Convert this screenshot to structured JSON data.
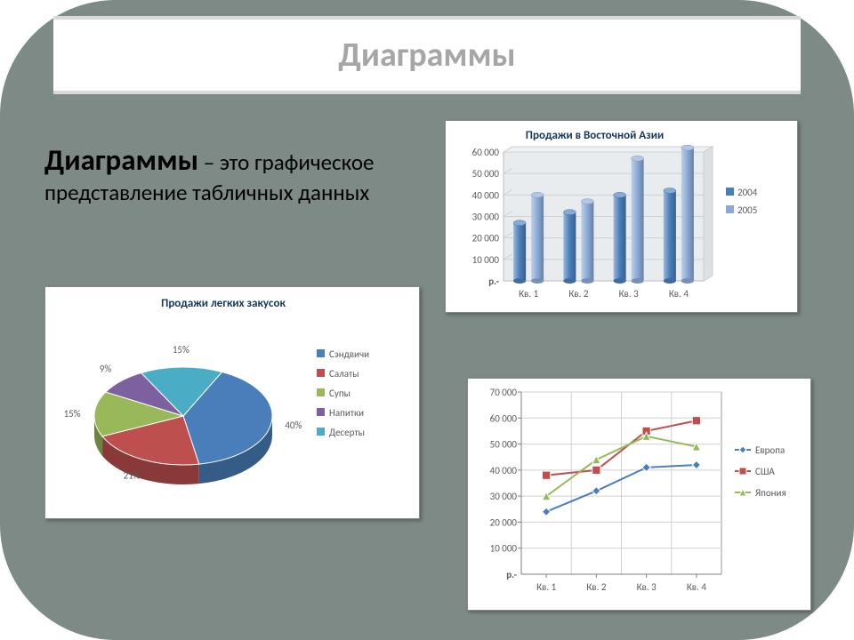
{
  "title": "Диаграммы",
  "definition_bold": "Диаграммы",
  "definition_rest": " – это графическое представление табличных данных",
  "bar_chart": {
    "type": "bar",
    "title": "Продажи в Восточной Азии",
    "categories": [
      "Кв. 1",
      "Кв. 2",
      "Кв. 3",
      "Кв. 4"
    ],
    "series": [
      {
        "name": "2004",
        "color": "#4a7ebb",
        "values": [
          27000,
          32000,
          40000,
          42000
        ]
      },
      {
        "name": "2005",
        "color": "#8aa9d6",
        "values": [
          40000,
          37000,
          57000,
          62000
        ]
      }
    ],
    "ylim": [
      0,
      60000
    ],
    "ytick_step": 10000,
    "ytick_labels": [
      "10 000",
      "20 000",
      "30 000",
      "40 000",
      "50 000",
      "60 000"
    ],
    "y_bottom_label": "р.-",
    "bg": "#ffffff",
    "plot_bg": "#e8ecef",
    "grid": "#c8c8c8",
    "title_fontsize": 13,
    "tick_fontsize": 11,
    "legend_fontsize": 11
  },
  "pie_chart": {
    "type": "pie",
    "title": "Продажи легких закусок",
    "slices": [
      {
        "name": "Сэндвичи",
        "value": 40,
        "label": "40%",
        "color": "#4a7ebb"
      },
      {
        "name": "Салаты",
        "value": 21,
        "label": "21%",
        "color": "#bd4f4e"
      },
      {
        "name": "Супы",
        "value": 15,
        "label": "15%",
        "color": "#98b85a"
      },
      {
        "name": "Напитки",
        "value": 9,
        "label": "9%",
        "color": "#7d60a0"
      },
      {
        "name": "Десерты",
        "value": 15,
        "label": "15%",
        "color": "#4aacc5"
      }
    ],
    "legend_markers": [
      "#4a7ebb",
      "#bd4f4e",
      "#98b85a",
      "#7d60a0",
      "#4aacc5"
    ],
    "title_fontsize": 13,
    "label_fontsize": 11,
    "label_color": "#595959",
    "bg": "#ffffff"
  },
  "line_chart": {
    "type": "line",
    "categories": [
      "Кв. 1",
      "Кв. 2",
      "Кв. 3",
      "Кв. 4"
    ],
    "series": [
      {
        "name": "Европа",
        "color": "#4a7ebb",
        "marker": "diamond",
        "values": [
          24000,
          32000,
          41000,
          42000
        ]
      },
      {
        "name": "США",
        "color": "#bd4f4e",
        "marker": "square",
        "values": [
          38000,
          40000,
          55000,
          59000
        ]
      },
      {
        "name": "Япония",
        "color": "#98b85a",
        "marker": "triangle",
        "values": [
          30000,
          44000,
          53000,
          49000
        ]
      }
    ],
    "ylim": [
      0,
      70000
    ],
    "ytick_step": 10000,
    "ytick_labels": [
      "10 000",
      "20 000",
      "30 000",
      "40 000",
      "50 000",
      "60 000",
      "70 000"
    ],
    "y_bottom_label": "р.-",
    "bg": "#ffffff",
    "grid": "#d0d0d0",
    "title_fontsize": 13,
    "tick_fontsize": 11,
    "legend_fontsize": 11,
    "line_width": 2,
    "marker_size": 6
  }
}
